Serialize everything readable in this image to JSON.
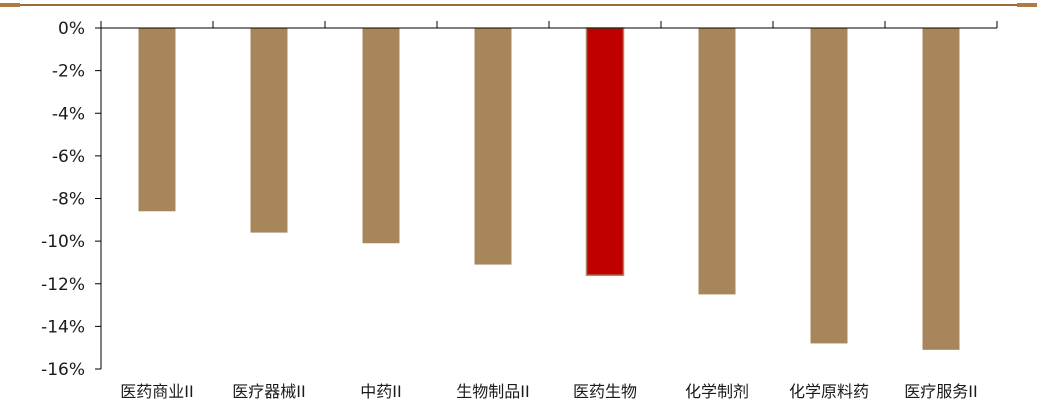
{
  "chart_data": {
    "type": "bar",
    "categories": [
      "医药商业II",
      "医疗器械II",
      "中药II",
      "生物制品II",
      "医药生物",
      "化学制剂",
      "化学原料药",
      "医疗服务II"
    ],
    "values": [
      -8.6,
      -9.6,
      -10.1,
      -11.1,
      -11.6,
      -12.5,
      -14.8,
      -15.1
    ],
    "highlight_index": 4,
    "ylim": [
      -16,
      0
    ],
    "yticks": [
      "0%",
      "-2%",
      "-4%",
      "-6%",
      "-8%",
      "-10%",
      "-12%",
      "-14%",
      "-16%"
    ],
    "colors": {
      "bar": "#a8865c",
      "highlight": "#c00000",
      "axis": "#000000",
      "top_rule": "#9c6b3c"
    },
    "grid": false,
    "legend": "none"
  }
}
